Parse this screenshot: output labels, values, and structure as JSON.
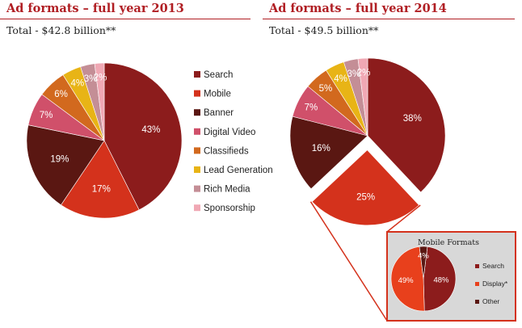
{
  "colors": {
    "Search": "#8c1c1c",
    "Mobile": "#d4321c",
    "Banner": "#5a1712",
    "Digital Video": "#d0506a",
    "Classifieds": "#d2691e",
    "Lead Generation": "#e8b416",
    "Rich Media": "#c48e96",
    "Sponsorship": "#f0a8b4",
    "Display*": "#e8401c",
    "Other": "#5a1712",
    "title": "#b01e23"
  },
  "legend": [
    "Search",
    "Mobile",
    "Banner",
    "Digital Video",
    "Classifieds",
    "Lead Generation",
    "Rich Media",
    "Sponsorship"
  ],
  "chart_data": [
    {
      "type": "pie",
      "title": "Ad formats – full year 2013",
      "subtitle": "Total - $42.8 billion**",
      "slices": [
        {
          "name": "Search",
          "value": 43,
          "label": "43%"
        },
        {
          "name": "Mobile",
          "value": 17,
          "label": "17%"
        },
        {
          "name": "Banner",
          "value": 19,
          "label": "19%"
        },
        {
          "name": "Digital Video",
          "value": 7,
          "label": "7%"
        },
        {
          "name": "Classifieds",
          "value": 6,
          "label": "6%"
        },
        {
          "name": "Lead Generation",
          "value": 4,
          "label": "4%"
        },
        {
          "name": "Rich Media",
          "value": 3,
          "label": "3%"
        },
        {
          "name": "Sponsorship",
          "value": 2,
          "label": "2%"
        }
      ]
    },
    {
      "type": "pie",
      "title": "Ad formats – full year 2014",
      "subtitle": "Total - $49.5 billion**",
      "slices": [
        {
          "name": "Search",
          "value": 38,
          "label": "38%"
        },
        {
          "name": "Mobile",
          "value": 25,
          "label": "25%",
          "exploded": true
        },
        {
          "name": "Banner",
          "value": 16,
          "label": "16%"
        },
        {
          "name": "Digital Video",
          "value": 7,
          "label": "7%"
        },
        {
          "name": "Classifieds",
          "value": 5,
          "label": "5%"
        },
        {
          "name": "Lead Generation",
          "value": 4,
          "label": "4%"
        },
        {
          "name": "Rich Media",
          "value": 3,
          "label": "3%"
        },
        {
          "name": "Sponsorship",
          "value": 2,
          "label": "2%"
        }
      ]
    },
    {
      "type": "pie",
      "title": "Mobile Formats",
      "slices": [
        {
          "name": "Search",
          "value": 48,
          "label": "48%"
        },
        {
          "name": "Display*",
          "value": 49,
          "label": "49%"
        },
        {
          "name": "Other",
          "value": 4,
          "label": "4%"
        }
      ],
      "legend": [
        "Search",
        "Display*",
        "Other"
      ]
    }
  ]
}
